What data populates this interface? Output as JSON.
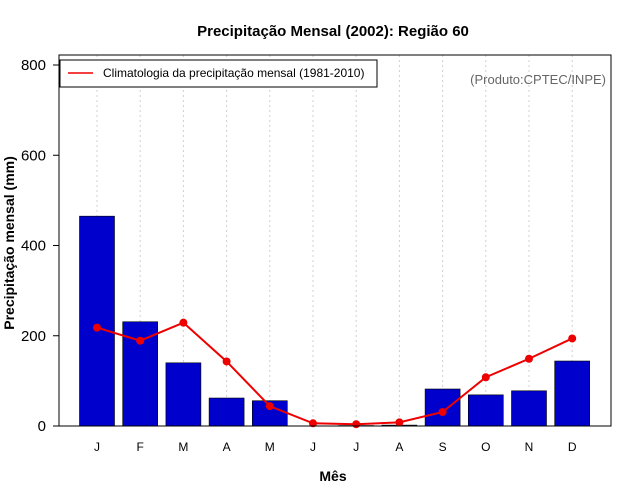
{
  "chart_data": {
    "type": "bar",
    "title": "Precipitação Mensal (2002): Região 60",
    "xlabel": "Mês",
    "ylabel": "Precipitação mensal (mm)",
    "ylim": [
      0,
      800
    ],
    "yticks": [
      "0",
      "200",
      "400",
      "600",
      "800"
    ],
    "categories": [
      "J",
      "F",
      "M",
      "A",
      "M",
      "J",
      "J",
      "A",
      "S",
      "O",
      "N",
      "D"
    ],
    "series": [
      {
        "name": "Precipitação mensal 2002",
        "type": "bar",
        "color": "#0000cc",
        "values": [
          465,
          231,
          140,
          62,
          56,
          0,
          1,
          2,
          82,
          69,
          78,
          144
        ]
      },
      {
        "name": "Climatologia da precipitação mensal (1981-2010)",
        "type": "line",
        "color": "#ee0000",
        "values": [
          218,
          189,
          229,
          143,
          44,
          6,
          4,
          8,
          31,
          108,
          149,
          194
        ]
      }
    ],
    "legend": {
      "label": "Climatologia da precipitação mensal (1981-2010)",
      "position": "top-left"
    },
    "credit": "(Produto:CPTEC/INPE)",
    "grid": "vertical dotted"
  }
}
